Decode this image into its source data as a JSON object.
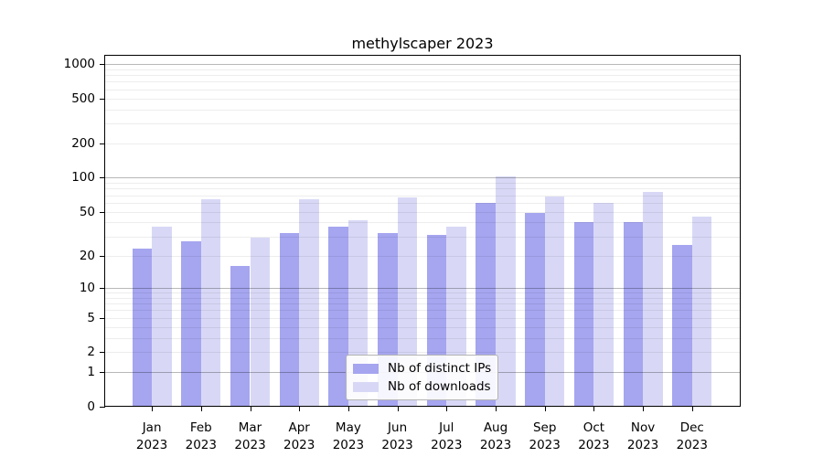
{
  "figure": {
    "background": "#ffffff"
  },
  "chart_data": {
    "type": "bar",
    "title": "methylscaper 2023",
    "categories": [
      "Jan 2023",
      "Feb 2023",
      "Mar 2023",
      "Apr 2023",
      "May 2023",
      "Jun 2023",
      "Jul 2023",
      "Aug 2023",
      "Sep 2023",
      "Oct 2023",
      "Nov 2023",
      "Dec 2023"
    ],
    "series": [
      {
        "name": "Nb of distinct IPs",
        "color": "#a5a5f0",
        "values": [
          23,
          27,
          16,
          32,
          37,
          32,
          31,
          60,
          49,
          40,
          40,
          25
        ]
      },
      {
        "name": "Nb of downloads",
        "color": "#d8d8f6",
        "values": [
          37,
          64,
          29,
          65,
          42,
          67,
          37,
          102,
          68,
          60,
          75,
          45
        ]
      }
    ],
    "xlabel": "",
    "ylabel": "",
    "y_axis": {
      "scale": "log1p",
      "ticks": [
        0,
        1,
        2,
        5,
        10,
        20,
        50,
        100,
        200,
        500,
        1000
      ],
      "range_top": 1200
    },
    "gridlines": {
      "major": [
        1,
        10,
        100,
        1000
      ],
      "minor": [
        2,
        3,
        4,
        5,
        6,
        7,
        8,
        9,
        20,
        30,
        40,
        50,
        60,
        70,
        80,
        90,
        200,
        300,
        400,
        500,
        600,
        700,
        800,
        900
      ]
    },
    "legend": {
      "position": "bottom-center"
    }
  },
  "colors": {
    "grid_major": "rgba(0,0,0,0.28)",
    "grid_minor": "rgba(0,0,0,0.07)",
    "axis": "#000000"
  }
}
